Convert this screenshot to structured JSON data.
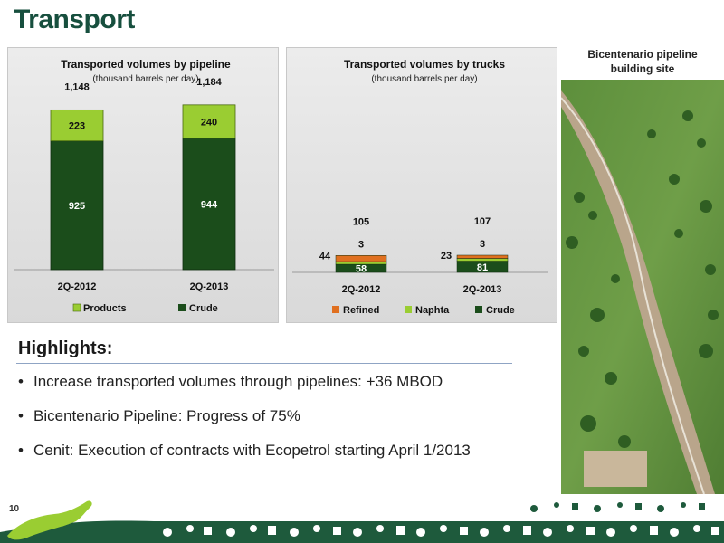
{
  "slide": {
    "title": "Transport",
    "page_number": "10",
    "photo_label": "Bicentenario pipeline building site"
  },
  "highlights": {
    "title": "Highlights:",
    "items": [
      "Increase transported volumes through pipelines: +36 MBOD",
      "Bicentenario Pipeline: Progress of 75%",
      "Cenit:  Execution of contracts with Ecopetrol starting April 1/2013"
    ]
  },
  "colors": {
    "title": "#174f3e",
    "crude": "#1b4d1b",
    "products": "#9acd32",
    "naphtha": "#9acd32",
    "refined": "#e07020"
  },
  "chart_data": [
    {
      "type": "bar",
      "stacked": true,
      "title": "Transported volumes by pipeline",
      "subtitle": "(thousand barrels per day)",
      "categories": [
        "2Q-2012",
        "2Q-2013"
      ],
      "series": [
        {
          "name": "Crude",
          "values": [
            925,
            944
          ]
        },
        {
          "name": "Products",
          "values": [
            223,
            240
          ]
        }
      ],
      "totals": [
        "1,148",
        "1,184"
      ],
      "legend": [
        "Products",
        "Crude"
      ],
      "legend_position": "bottom",
      "ylim": [
        0,
        1300
      ],
      "grid": false
    },
    {
      "type": "bar",
      "stacked": true,
      "title": "Transported volumes by trucks",
      "subtitle": "(thousand barrels per day)",
      "categories": [
        "2Q-2012",
        "2Q-2013"
      ],
      "series": [
        {
          "name": "Crude",
          "values": [
            58,
            81
          ]
        },
        {
          "name": "Naphta",
          "values": [
            3,
            3
          ]
        },
        {
          "name": "Refined",
          "values": [
            44,
            23
          ]
        }
      ],
      "totals": [
        "105",
        "107"
      ],
      "legend": [
        "Refined",
        "Naphta",
        "Crude"
      ],
      "legend_position": "bottom",
      "ylim": [
        0,
        1300
      ],
      "grid": false
    }
  ]
}
